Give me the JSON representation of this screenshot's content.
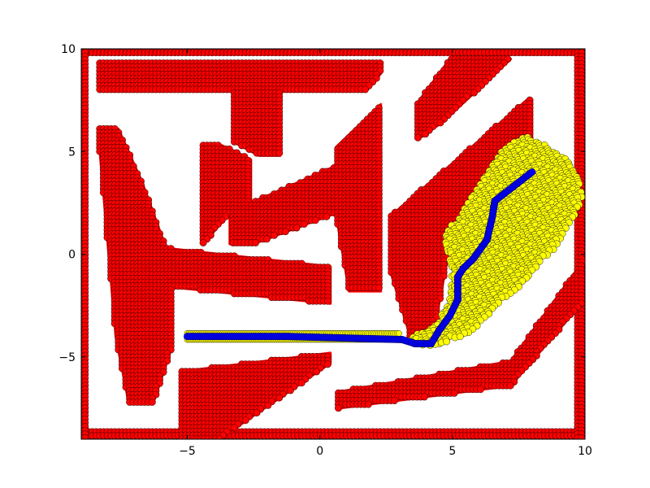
{
  "chart_data": {
    "type": "scatter",
    "title": "",
    "xlabel": "",
    "ylabel": "",
    "xlim": [
      -9,
      10
    ],
    "ylim": [
      -9,
      10
    ],
    "x_ticks": [
      -5,
      0,
      5,
      10
    ],
    "y_ticks": [
      -5,
      0,
      5,
      10
    ],
    "x_tick_labels": [
      "−5",
      "0",
      "5",
      "10"
    ],
    "y_tick_labels": [
      "−5",
      "0",
      "5",
      "10"
    ],
    "grid": false,
    "legend": "none",
    "colors": {
      "obstacle_fill": "#ff0000",
      "obstacle_edge": "#4a0000",
      "explored_fill": "#ffff00",
      "explored_edge": "#222222",
      "path_fill": "#0000ff",
      "path_edge": "#000080"
    },
    "obstacles": [
      {
        "name": "outer-boundary",
        "kind": "frame",
        "polygon": [
          [
            -9,
            10
          ],
          [
            10,
            10
          ],
          [
            10,
            -9
          ],
          [
            -9,
            -9
          ]
        ]
      },
      {
        "name": "top-bar",
        "polygon": [
          [
            -8.3,
            9.3
          ],
          [
            2.3,
            9.3
          ],
          [
            2.3,
            8.8
          ],
          [
            1.8,
            8.0
          ],
          [
            -1.5,
            8.0
          ],
          [
            -1.5,
            4.8
          ],
          [
            -2.3,
            4.8
          ],
          [
            -3.3,
            5.5
          ],
          [
            -3.3,
            8.0
          ],
          [
            -8.3,
            8.0
          ]
        ]
      },
      {
        "name": "left-diagonal",
        "polygon": [
          [
            -8.3,
            6.1
          ],
          [
            -7.6,
            6.1
          ],
          [
            -6.7,
            3.5
          ],
          [
            -5.8,
            0.3
          ],
          [
            0.4,
            -0.6
          ],
          [
            0.4,
            -2.4
          ],
          [
            -5.6,
            -1.6
          ],
          [
            -5.6,
            -4.6
          ],
          [
            -6.3,
            -7.3
          ],
          [
            -7.2,
            -7.3
          ],
          [
            -7.7,
            -4.0
          ],
          [
            -8.3,
            5.0
          ]
        ]
      },
      {
        "name": "middle-m-shape",
        "polygon": [
          [
            -4.4,
            5.3
          ],
          [
            -3.7,
            5.3
          ],
          [
            -2.6,
            4.6
          ],
          [
            -2.6,
            2.5
          ],
          [
            0.6,
            4.3
          ],
          [
            0.6,
            5.2
          ],
          [
            2.3,
            7.3
          ],
          [
            2.3,
            -1.8
          ],
          [
            1.1,
            -1.8
          ],
          [
            0.6,
            2.0
          ],
          [
            -2.5,
            0.5
          ],
          [
            -3.4,
            0.5
          ],
          [
            -3.4,
            2.0
          ],
          [
            -4.4,
            0.5
          ]
        ]
      },
      {
        "name": "lower-parallelogram",
        "polygon": [
          [
            -5.2,
            -5.7
          ],
          [
            0.4,
            -4.8
          ],
          [
            0.4,
            -5.3
          ],
          [
            -3.8,
            -9.0
          ],
          [
            -5.2,
            -9.0
          ]
        ]
      },
      {
        "name": "right-diagonal",
        "polygon": [
          [
            2.7,
            1.9
          ],
          [
            7.8,
            7.5
          ],
          [
            8.0,
            7.5
          ],
          [
            8.0,
            5.4
          ],
          [
            5.0,
            1.0
          ],
          [
            4.2,
            -4.4
          ],
          [
            3.5,
            -4.4
          ],
          [
            2.7,
            -1.0
          ]
        ]
      },
      {
        "name": "upper-right-block",
        "polygon": [
          [
            3.7,
            7.4
          ],
          [
            4.9,
            9.5
          ],
          [
            7.2,
            9.5
          ],
          [
            4.6,
            6.4
          ],
          [
            3.7,
            5.6
          ]
        ]
      },
      {
        "name": "lower-right-diagonal",
        "polygon": [
          [
            0.7,
            -6.7
          ],
          [
            7.2,
            -5.2
          ],
          [
            10.0,
            -0.2
          ],
          [
            10.0,
            -2.2
          ],
          [
            7.2,
            -6.4
          ],
          [
            0.7,
            -7.5
          ]
        ]
      }
    ],
    "series": [
      {
        "role": "explored",
        "color": "#ffff00",
        "regions": [
          {
            "kind": "band",
            "y_center": -4.0,
            "half_height": 0.15,
            "x_start": -5.0,
            "x_end": 3.0
          },
          {
            "kind": "hull",
            "polygon": [
              [
                3.2,
                -4.2
              ],
              [
                3.4,
                -4.3
              ],
              [
                4.3,
                -4.5
              ],
              [
                5.7,
                -3.8
              ],
              [
                6.6,
                -2.6
              ],
              [
                7.5,
                -1.6
              ],
              [
                9.0,
                0.5
              ],
              [
                9.5,
                1.6
              ],
              [
                9.9,
                2.7
              ],
              [
                9.8,
                3.6
              ],
              [
                9.3,
                4.6
              ],
              [
                8.4,
                5.4
              ],
              [
                7.7,
                5.8
              ],
              [
                6.8,
                5.0
              ],
              [
                6.0,
                3.4
              ],
              [
                5.2,
                1.8
              ],
              [
                4.6,
                0.8
              ],
              [
                5.0,
                -0.8
              ],
              [
                4.9,
                -2.2
              ],
              [
                4.4,
                -3.4
              ],
              [
                3.6,
                -3.9
              ]
            ]
          }
        ]
      },
      {
        "role": "path",
        "color": "#0000ff",
        "x": [
          -5.0,
          -1.2,
          3.1,
          3.6,
          4.2,
          4.5,
          4.9,
          5.2,
          5.2,
          5.4,
          5.8,
          6.3,
          6.5,
          6.6,
          6.9,
          7.5,
          8.0
        ],
        "y": [
          -4.0,
          -4.0,
          -4.15,
          -4.35,
          -4.35,
          -3.7,
          -3.0,
          -2.2,
          -1.1,
          -0.7,
          -0.2,
          0.7,
          1.8,
          2.6,
          2.9,
          3.5,
          4.0
        ]
      }
    ]
  }
}
